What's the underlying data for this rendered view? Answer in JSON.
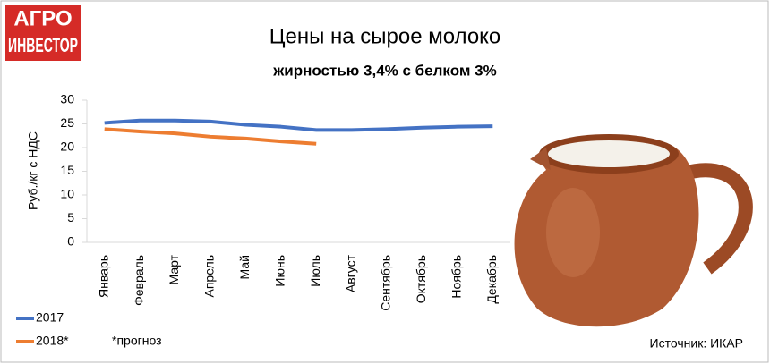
{
  "logo": {
    "line1": "АГРО",
    "line2": "ИНВЕСТОР"
  },
  "chart_data": {
    "type": "line",
    "title": "Цены на сырое молоко",
    "subtitle": "жирностью 3,4% с белком 3%",
    "y_label": "Руб./кг с НДС",
    "categories": [
      "Январь",
      "Февраль",
      "Март",
      "Апрель",
      "Май",
      "Июнь",
      "Июль",
      "Август",
      "Сентябрь",
      "Октябрь",
      "Ноябрь",
      "Декабрь"
    ],
    "series": [
      {
        "name": "2017",
        "color": "#4472c4",
        "values": [
          25.2,
          25.7,
          25.7,
          25.5,
          24.8,
          24.4,
          23.7,
          23.7,
          23.9,
          24.2,
          24.4,
          24.5
        ]
      },
      {
        "name": "2018*",
        "color": "#ed7d31",
        "values": [
          23.9,
          23.4,
          23.0,
          22.3,
          21.9,
          21.3,
          20.8,
          null,
          null,
          null,
          null,
          null
        ]
      }
    ],
    "ylim": [
      0,
      30
    ],
    "yticks": [
      0,
      5,
      10,
      15,
      20,
      25,
      30
    ],
    "note": "*прогноз",
    "source": "Источник: ИКАР"
  }
}
